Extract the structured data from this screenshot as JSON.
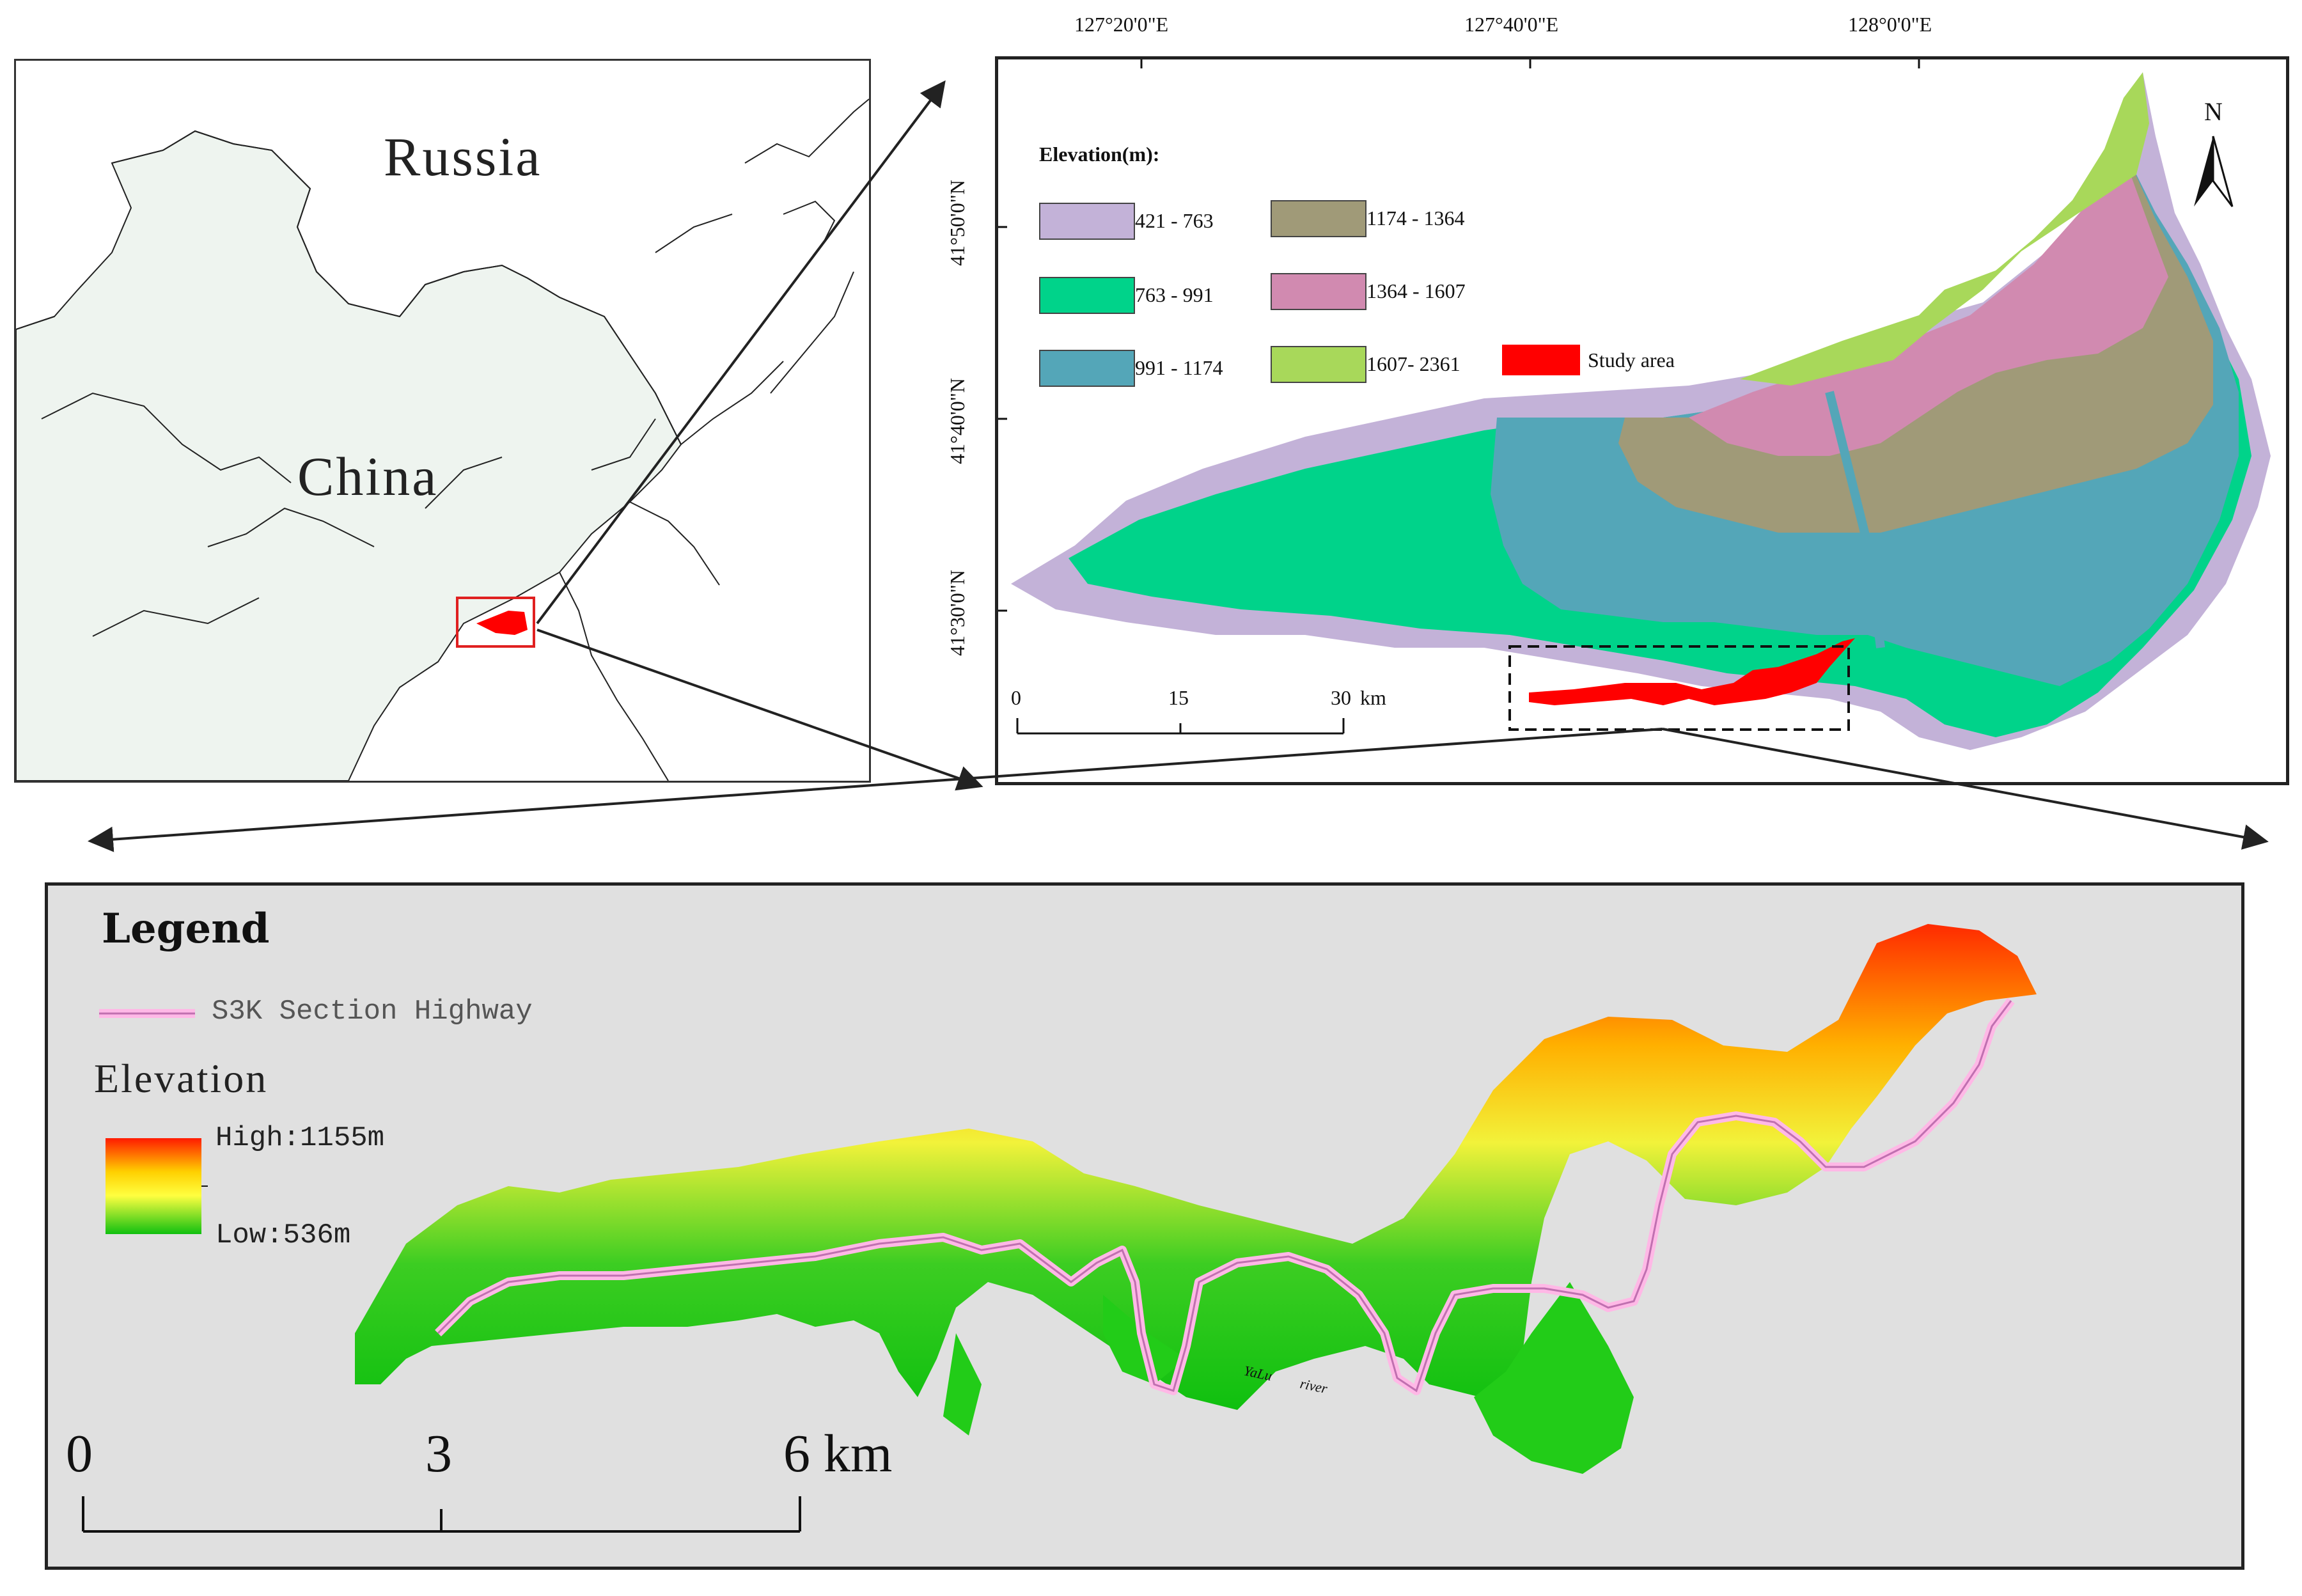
{
  "overview_map": {
    "labels": [
      "Russia",
      "China"
    ]
  },
  "regional_map": {
    "longitude_ticks": [
      "127°20'0\"E",
      "127°40'0\"E",
      "128°0'0\"E"
    ],
    "latitude_ticks": [
      "41°50'0\"N",
      "41°40'0\"N",
      "41°30'0\"N"
    ],
    "north_arrow": "N",
    "legend_title": "Elevation(m):",
    "legend": [
      {
        "label": "421 - 763",
        "color": "#c3b2d8"
      },
      {
        "label": "763 - 991",
        "color": "#00d38a"
      },
      {
        "label": "991 - 1174",
        "color": "#54a6b8"
      },
      {
        "label": "1174 - 1364",
        "color": "#a09a78"
      },
      {
        "label": "1364 - 1607",
        "color": "#d18ab0"
      },
      {
        "label": "1607- 2361",
        "color": "#a8d85a"
      },
      {
        "label": "Study area",
        "color": "#ff0000"
      }
    ],
    "scale_bar": {
      "ticks": [
        "0",
        "15",
        "30"
      ],
      "unit": "km"
    }
  },
  "study_map": {
    "legend_title": "Legend",
    "highway_label": "S3K Section Highway",
    "elevation_title": "Elevation",
    "elevation_high": "High:1155m",
    "elevation_low": "Low:536m",
    "river_label_1": "YaLu",
    "river_label_2": "river",
    "scale_bar": {
      "ticks": [
        "0",
        "3",
        "6 km"
      ]
    }
  }
}
